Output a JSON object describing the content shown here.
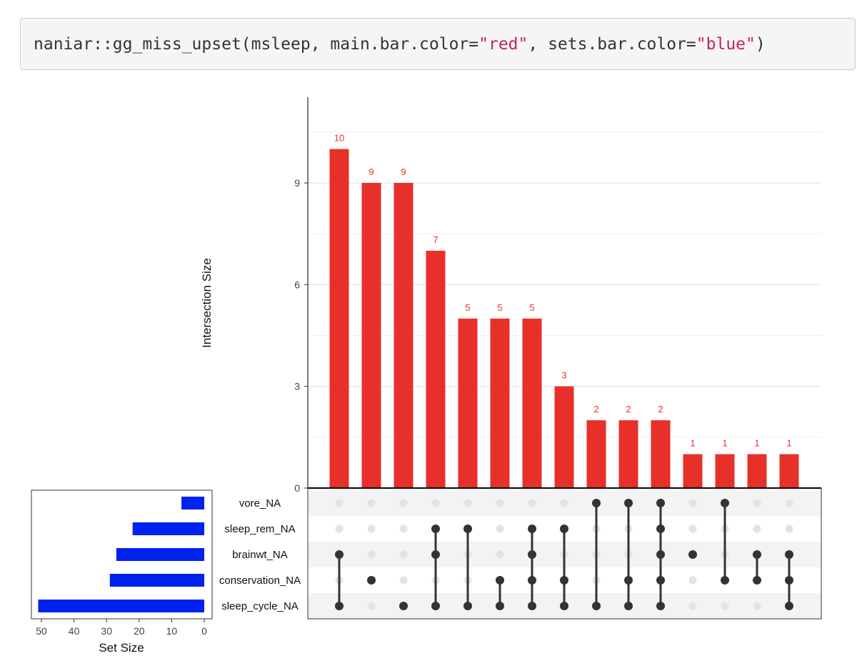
{
  "code": {
    "parts": [
      {
        "text": "naniar::gg_miss_upset(msleep, main.bar.color=",
        "kind": "plain"
      },
      {
        "text": "\"red\"",
        "kind": "str"
      },
      {
        "text": ", sets.bar.color=",
        "kind": "plain"
      },
      {
        "text": "\"blue\"",
        "kind": "str"
      },
      {
        "text": ")",
        "kind": "plain"
      }
    ]
  },
  "chart_data": {
    "type": "bar",
    "ylabel": "Intersection Size",
    "xlabel": "Set Size",
    "ylim": [
      0,
      11.5
    ],
    "yticks": [
      0,
      3,
      6,
      9
    ],
    "main_bar_color": "#e8302a",
    "set_bar_color": "#0022ee",
    "sets": [
      {
        "name": "vore_NA",
        "size": 7
      },
      {
        "name": "sleep_rem_NA",
        "size": 22
      },
      {
        "name": "brainwt_NA",
        "size": 27
      },
      {
        "name": "conservation_NA",
        "size": 29
      },
      {
        "name": "sleep_cycle_NA",
        "size": 51
      }
    ],
    "set_size_ticks": [
      50,
      40,
      30,
      20,
      10,
      0
    ],
    "set_size_lim": [
      0,
      53
    ],
    "intersections": [
      {
        "value": 10,
        "sets": [
          "brainwt_NA",
          "sleep_cycle_NA"
        ]
      },
      {
        "value": 9,
        "sets": [
          "conservation_NA"
        ]
      },
      {
        "value": 9,
        "sets": [
          "sleep_cycle_NA"
        ]
      },
      {
        "value": 7,
        "sets": [
          "sleep_rem_NA",
          "brainwt_NA",
          "sleep_cycle_NA"
        ]
      },
      {
        "value": 5,
        "sets": [
          "sleep_rem_NA",
          "sleep_cycle_NA"
        ]
      },
      {
        "value": 5,
        "sets": [
          "conservation_NA",
          "sleep_cycle_NA"
        ]
      },
      {
        "value": 5,
        "sets": [
          "sleep_rem_NA",
          "brainwt_NA",
          "conservation_NA",
          "sleep_cycle_NA"
        ]
      },
      {
        "value": 3,
        "sets": [
          "sleep_rem_NA",
          "conservation_NA",
          "sleep_cycle_NA"
        ]
      },
      {
        "value": 2,
        "sets": [
          "vore_NA",
          "sleep_cycle_NA"
        ]
      },
      {
        "value": 2,
        "sets": [
          "vore_NA",
          "conservation_NA",
          "sleep_cycle_NA"
        ]
      },
      {
        "value": 2,
        "sets": [
          "vore_NA",
          "sleep_rem_NA",
          "brainwt_NA",
          "conservation_NA",
          "sleep_cycle_NA"
        ]
      },
      {
        "value": 1,
        "sets": [
          "brainwt_NA"
        ]
      },
      {
        "value": 1,
        "sets": [
          "vore_NA",
          "conservation_NA"
        ]
      },
      {
        "value": 1,
        "sets": [
          "brainwt_NA",
          "conservation_NA"
        ]
      },
      {
        "value": 1,
        "sets": [
          "brainwt_NA",
          "conservation_NA",
          "sleep_cycle_NA"
        ]
      }
    ]
  }
}
